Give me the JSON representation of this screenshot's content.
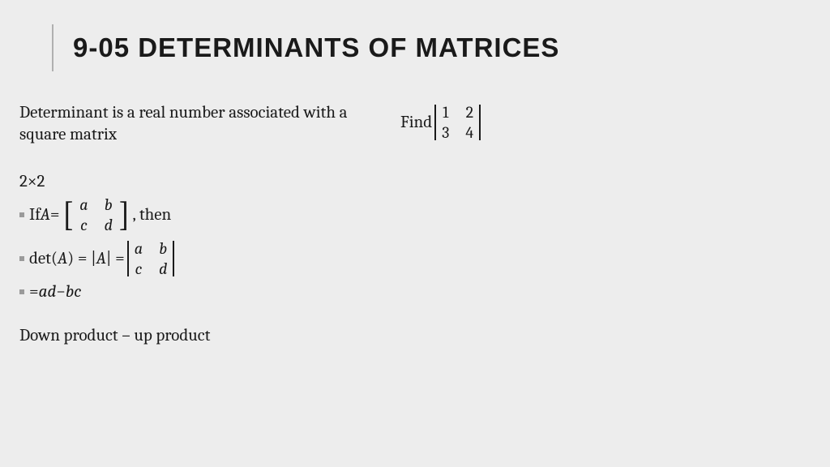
{
  "background_color": "#ededed",
  "text_color": "#1a1a1a",
  "title_font": "Arial Black, sans-serif",
  "body_font": "Cambria, Georgia, serif",
  "title_fontsize": 33,
  "body_fontsize": 21,
  "title_rule_color": "#b0b0b0",
  "bullet_color": "#9a9a9a",
  "title": "9-05 DETERMINANTS OF MATRICES",
  "left": {
    "definition": "Determinant is a real number associated with a square matrix",
    "dim": "2×2",
    "if_lead": "If ",
    "if_A_eq": "A",
    "eq": " = ",
    "example_matrix": {
      "a": "a",
      "b": "b",
      "c": "c",
      "d": "d"
    },
    "then": ", then",
    "det_lead": "det(",
    "det_A": "A",
    "det_close": ") = |",
    "abs_A": "A",
    "abs_close": "| = ",
    "det_matrix": {
      "a": "a",
      "b": "b",
      "c": "c",
      "d": "d"
    },
    "formula_eq": "= ",
    "formula_ad": "ad",
    "formula_minus": " − ",
    "formula_bc": "bc",
    "footer": "Down product – up product"
  },
  "right": {
    "find": "Find ",
    "matrix": {
      "a": "1",
      "b": "2",
      "c": "3",
      "d": "4"
    }
  }
}
